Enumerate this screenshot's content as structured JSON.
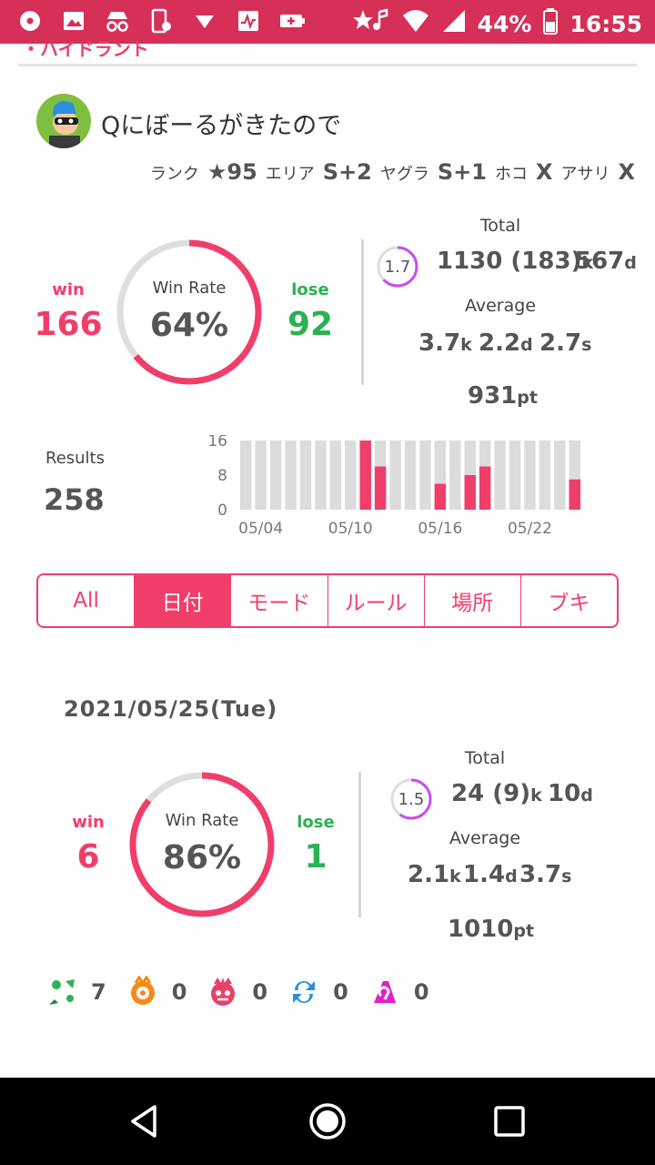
{
  "status_bar": {
    "battery": "44%",
    "time": "16:55"
  },
  "partial_header": "・ハイドラント",
  "player": {
    "name": "Qにぼーるがきたので",
    "ranks": [
      {
        "label": "ランク",
        "value": "★95"
      },
      {
        "label": "エリア",
        "value": "S+2"
      },
      {
        "label": "ヤグラ",
        "value": "S+1"
      },
      {
        "label": "ホコ",
        "value": "X"
      },
      {
        "label": "アサリ",
        "value": "X"
      }
    ]
  },
  "overall": {
    "win_label": "win",
    "win": "166",
    "lose_label": "lose",
    "lose": "92",
    "win_rate_title": "Win Rate",
    "win_rate": "64%",
    "win_rate_fraction": 0.64,
    "kd_ratio": "1.7",
    "kd_ratio_value": 1.7,
    "total_title": "Total",
    "total_kills": "1130 (183)",
    "total_kills_unit": "k",
    "total_deaths": "567",
    "total_deaths_unit": "d",
    "average_title": "Average",
    "avg_kills": "3.7",
    "avg_kills_unit": "k",
    "avg_deaths": "2.2",
    "avg_deaths_unit": "d",
    "avg_specials": "2.7",
    "avg_specials_unit": "s",
    "avg_points": "931",
    "avg_points_unit": "pt"
  },
  "results": {
    "label": "Results",
    "count": "258"
  },
  "chart_data": {
    "type": "bar",
    "ylim": [
      0,
      16
    ],
    "yticks": [
      "16",
      "8",
      "0"
    ],
    "xticks": [
      "05/04",
      "05/10",
      "05/16",
      "05/22"
    ],
    "days": 23,
    "background_bar_value": 16,
    "series": [
      {
        "color": "#f03e6b",
        "values": [
          0,
          0,
          0,
          0,
          0,
          0,
          0,
          0,
          16,
          10,
          0,
          0,
          0,
          6,
          0,
          8,
          10,
          0,
          0,
          0,
          0,
          0,
          7
        ]
      }
    ]
  },
  "tabs": [
    {
      "label": "All",
      "active": false
    },
    {
      "label": "日付",
      "active": true
    },
    {
      "label": "モード",
      "active": false
    },
    {
      "label": "ルール",
      "active": false
    },
    {
      "label": "場所",
      "active": false
    },
    {
      "label": "ブキ",
      "active": false
    }
  ],
  "day": {
    "date": "2021/05/25(Tue)",
    "win_label": "win",
    "win": "6",
    "lose_label": "lose",
    "lose": "1",
    "win_rate_title": "Win Rate",
    "win_rate": "86%",
    "win_rate_fraction": 0.86,
    "kd_ratio": "1.5",
    "kd_ratio_value": 1.5,
    "total_title": "Total",
    "total_kills": "24 (9)",
    "total_kills_unit": "k",
    "total_deaths": "10",
    "total_deaths_unit": "d",
    "average_title": "Average",
    "avg_kills": "2.1",
    "avg_kills_unit": "k",
    "avg_deaths": "1.4",
    "avg_deaths_unit": "d",
    "avg_specials": "3.7",
    "avg_specials_unit": "s",
    "avg_points": "1010",
    "avg_points_unit": "pt",
    "modes": [
      {
        "icon": "turf-war-icon",
        "count": "7"
      },
      {
        "icon": "splat-zones-icon",
        "count": "0"
      },
      {
        "icon": "rainmaker-icon",
        "count": "0"
      },
      {
        "icon": "tower-control-icon",
        "count": "0"
      },
      {
        "icon": "clam-blitz-icon",
        "count": "0"
      }
    ]
  },
  "colors": {
    "accent": "#f03e6b",
    "win": "#f03e6b",
    "lose": "#2bb252",
    "status_bar": "#d62f58"
  }
}
